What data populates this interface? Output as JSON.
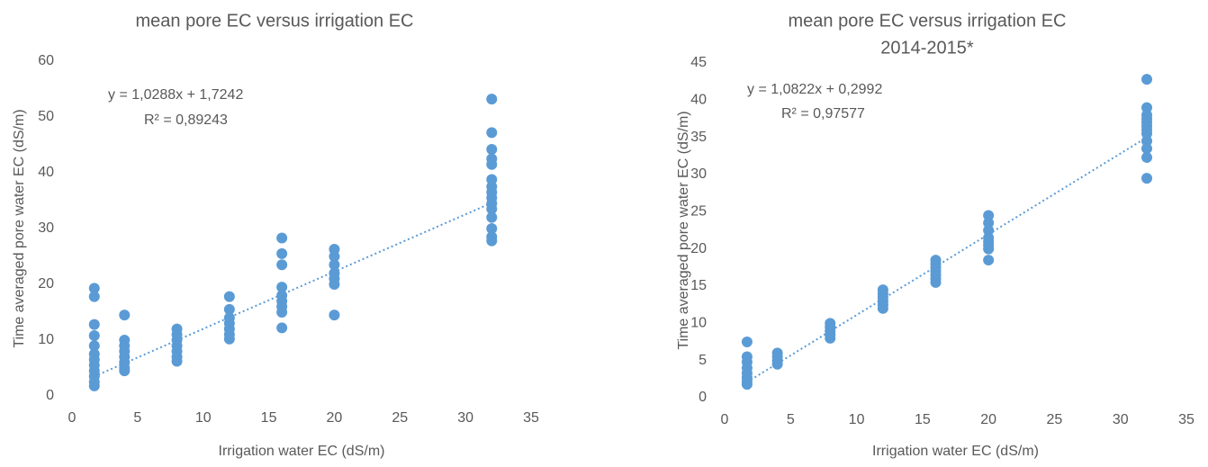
{
  "chart_data": [
    {
      "type": "scatter",
      "title": "mean pore EC versus irrigation EC",
      "x_label": "Irrigation water EC (dS/m)",
      "y_label": "Time averaged pore water EC (dS/m)",
      "annotations": [
        "y = 1,0288x + 1,7242",
        "R² = 0,89243"
      ],
      "color": "#5b9bd5",
      "x": [
        1.7,
        1.7,
        1.7,
        1.7,
        1.7,
        1.7,
        1.7,
        1.7,
        1.7,
        1.7,
        1.7,
        1.7,
        4,
        4,
        4,
        4,
        4,
        4,
        4,
        4,
        8,
        8,
        8,
        8,
        8,
        8,
        8,
        12,
        12,
        12,
        12,
        12,
        12,
        12,
        16,
        16,
        16,
        16,
        16,
        16,
        16,
        16,
        16,
        20,
        20,
        20,
        20,
        20,
        20,
        20,
        32,
        32,
        32,
        32,
        32,
        32,
        32,
        32,
        32,
        32,
        32,
        32,
        32,
        32,
        32
      ],
      "values": [
        19.3,
        17.8,
        12.8,
        10.8,
        9,
        7.5,
        6.5,
        5.5,
        4.5,
        3.5,
        2.5,
        1.8,
        14.5,
        10,
        9,
        8,
        7,
        6,
        5,
        4.5,
        12,
        11,
        10,
        9,
        8,
        7,
        6.2,
        17.8,
        15.5,
        14,
        13,
        12,
        11,
        10.2,
        28.3,
        25.5,
        23.5,
        19.5,
        18,
        17,
        16,
        15,
        12.2,
        26.3,
        25,
        23.5,
        22,
        21,
        20,
        14.5,
        53.2,
        47.2,
        44.2,
        42.5,
        41.5,
        38.8,
        37.5,
        36.5,
        35.5,
        34.5,
        33.5,
        32,
        30,
        28.5,
        27.8
      ],
      "trendline": {
        "x": [
          1.7,
          32
        ],
        "values": [
          3.5,
          34.6
        ]
      },
      "xlim": [
        0,
        35
      ],
      "xticks": [
        0,
        5,
        10,
        15,
        20,
        25,
        30,
        35
      ],
      "ylim": [
        0,
        60
      ],
      "yticks": [
        0,
        10,
        20,
        30,
        40,
        50,
        60
      ]
    },
    {
      "type": "scatter",
      "title": "mean pore EC versus irrigation EC",
      "subtitle": "2014-2015*",
      "x_label": "Irrigation water EC (dS/m)",
      "y_label": "Time averaged pore water EC (dS/m)",
      "annotations": [
        "y = 1,0822x + 0,2992",
        "R² = 0,97577"
      ],
      "color": "#5b9bd5",
      "x": [
        1.7,
        1.7,
        1.7,
        1.7,
        1.7,
        1.7,
        1.7,
        1.7,
        4,
        4,
        4,
        4,
        8,
        8,
        8,
        8,
        8,
        12,
        12,
        12,
        12,
        12,
        12,
        16,
        16,
        16,
        16,
        16,
        16,
        16,
        20,
        20,
        20,
        20,
        20,
        20,
        20,
        20,
        32,
        32,
        32,
        32,
        32,
        32,
        32,
        32,
        32,
        32,
        32,
        32
      ],
      "values": [
        7.5,
        5.5,
        4.8,
        4,
        3.3,
        2.7,
        2.2,
        1.8,
        6,
        5.5,
        5,
        4.5,
        10,
        9.5,
        9,
        8.5,
        8,
        14.5,
        14,
        13.5,
        13,
        12.5,
        12,
        18.5,
        18,
        17.5,
        17,
        16.5,
        16,
        15.5,
        24.5,
        23.5,
        22.5,
        21.5,
        21,
        20.5,
        20,
        18.5,
        42.8,
        39,
        38,
        37.5,
        37,
        36.5,
        36,
        35.5,
        34.5,
        33.5,
        32.3,
        29.5
      ],
      "trendline": {
        "x": [
          1.7,
          32
        ],
        "values": [
          2.1,
          35
        ]
      },
      "xlim": [
        0,
        35
      ],
      "xticks": [
        0,
        5,
        10,
        15,
        20,
        25,
        30,
        35
      ],
      "ylim": [
        0,
        45
      ],
      "yticks": [
        0,
        5,
        10,
        15,
        20,
        25,
        30,
        35,
        40,
        45
      ]
    }
  ]
}
